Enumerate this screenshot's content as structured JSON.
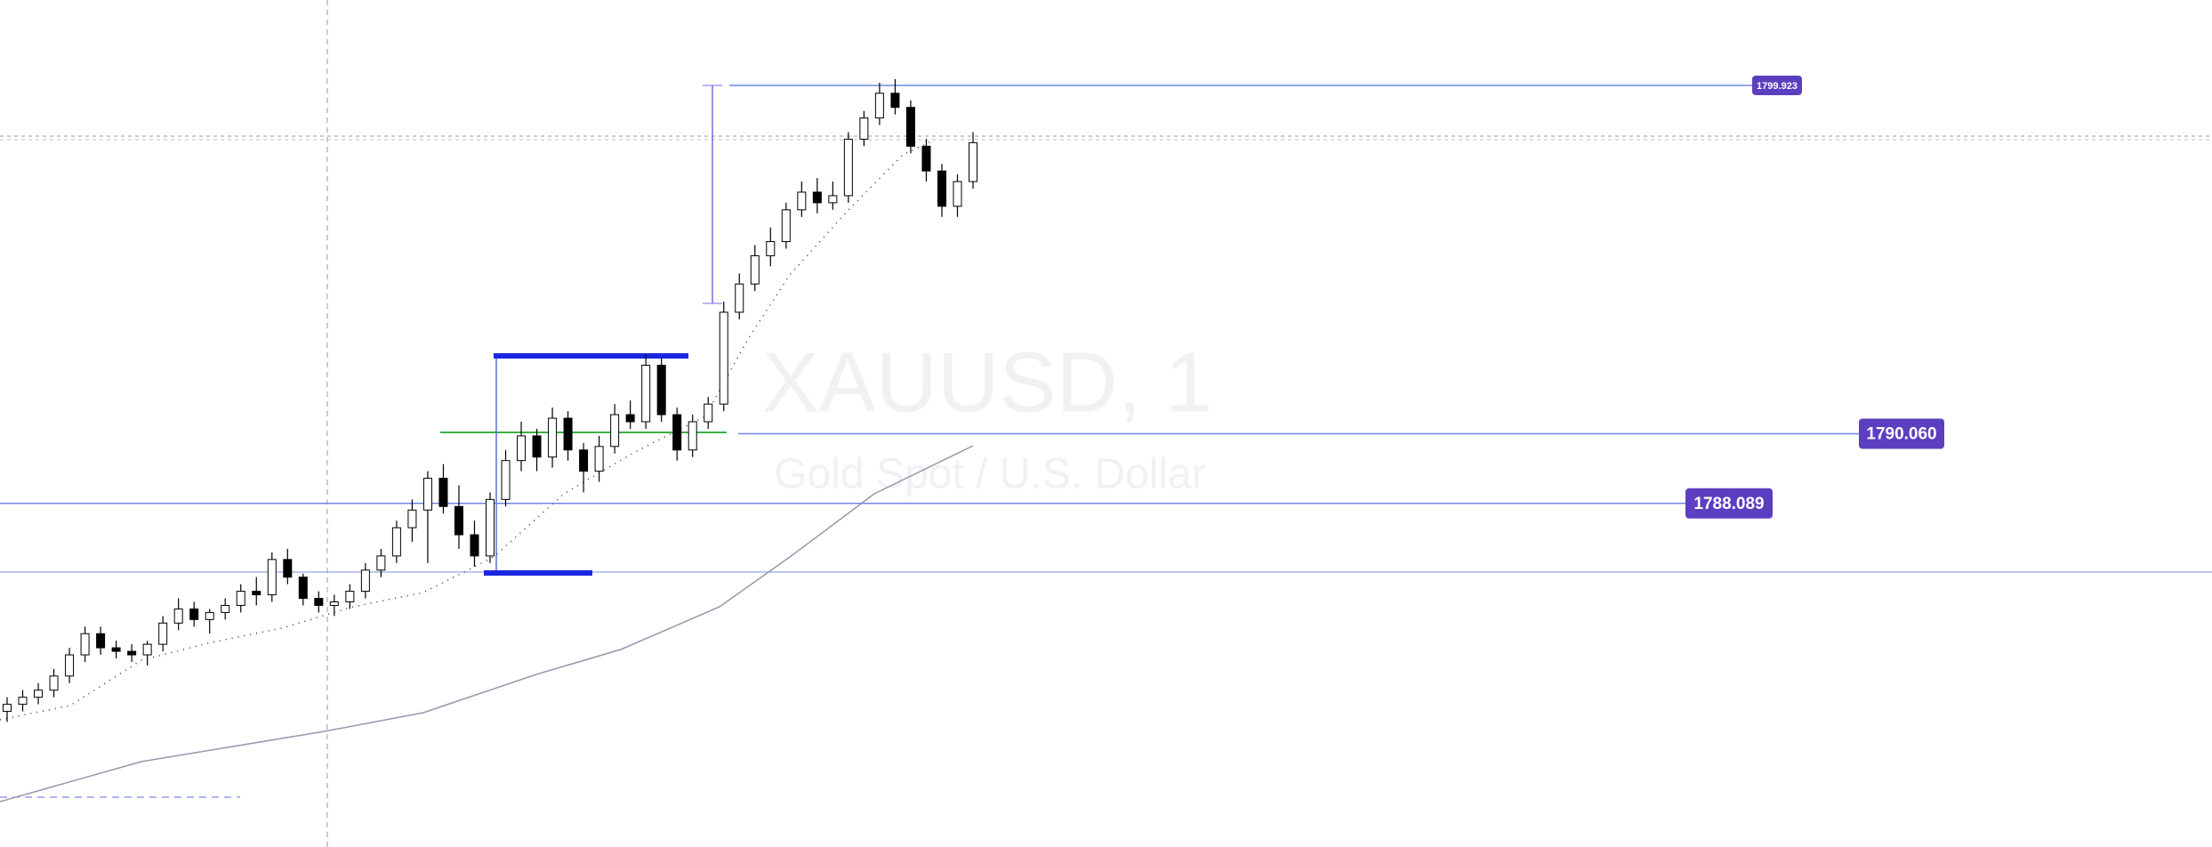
{
  "chart_data": {
    "type": "candlestick",
    "title": "XAUUSD, 1",
    "subtitle": "Gold Spot / U.S. Dollar",
    "ylim": [
      1778.36,
      1802.34
    ],
    "up_color": "#ffffff",
    "down_color": "#000000",
    "border_color": "#000000",
    "open": [
      1782.2,
      1782.4,
      1782.6,
      1782.8,
      1783.2,
      1783.8,
      1784.4,
      1784.0,
      1783.9,
      1783.8,
      1784.1,
      1784.7,
      1785.1,
      1784.8,
      1785.0,
      1785.2,
      1785.6,
      1785.5,
      1786.5,
      1786.0,
      1785.4,
      1785.2,
      1785.3,
      1785.6,
      1786.2,
      1786.6,
      1787.4,
      1787.9,
      1788.8,
      1788.0,
      1787.2,
      1786.6,
      1788.2,
      1789.3,
      1790.0,
      1789.4,
      1790.5,
      1789.6,
      1789.0,
      1789.7,
      1790.6,
      1790.4,
      1792.0,
      1790.6,
      1789.6,
      1790.4,
      1790.9,
      1793.5,
      1794.3,
      1795.1,
      1795.5,
      1796.4,
      1796.9,
      1796.6,
      1796.8,
      1798.4,
      1799.0,
      1799.7,
      1799.3,
      1798.2,
      1797.5,
      1796.5,
      1797.2
    ],
    "high": [
      1782.6,
      1782.8,
      1783.0,
      1783.4,
      1784.0,
      1784.6,
      1784.6,
      1784.2,
      1784.1,
      1784.2,
      1784.9,
      1785.4,
      1785.3,
      1785.1,
      1785.4,
      1785.8,
      1786.0,
      1786.7,
      1786.8,
      1786.1,
      1785.6,
      1785.5,
      1785.8,
      1786.4,
      1786.8,
      1787.6,
      1788.2,
      1789.0,
      1789.2,
      1788.6,
      1787.6,
      1788.4,
      1789.6,
      1790.4,
      1790.2,
      1790.8,
      1790.7,
      1789.8,
      1790.0,
      1790.9,
      1791.0,
      1792.3,
      1792.2,
      1790.8,
      1790.6,
      1791.1,
      1793.8,
      1794.6,
      1795.4,
      1795.9,
      1796.6,
      1797.2,
      1797.3,
      1797.2,
      1798.6,
      1799.2,
      1800.0,
      1800.1,
      1799.5,
      1798.4,
      1797.7,
      1797.4,
      1798.6
    ],
    "low": [
      1781.9,
      1782.2,
      1782.4,
      1782.6,
      1783.0,
      1783.6,
      1783.8,
      1783.7,
      1783.6,
      1783.5,
      1783.9,
      1784.5,
      1784.6,
      1784.4,
      1784.8,
      1785.0,
      1785.2,
      1785.3,
      1785.8,
      1785.2,
      1785.0,
      1784.9,
      1785.1,
      1785.4,
      1786.0,
      1786.4,
      1787.0,
      1786.4,
      1787.8,
      1786.8,
      1786.3,
      1786.4,
      1788.0,
      1789.0,
      1789.0,
      1789.1,
      1789.3,
      1788.4,
      1788.7,
      1789.5,
      1790.2,
      1790.2,
      1790.4,
      1789.3,
      1789.4,
      1790.2,
      1790.7,
      1793.3,
      1794.1,
      1794.8,
      1795.3,
      1796.2,
      1796.3,
      1796.4,
      1796.6,
      1798.2,
      1798.8,
      1799.1,
      1798.0,
      1797.2,
      1796.2,
      1796.2,
      1797.0
    ],
    "close": [
      1782.4,
      1782.6,
      1782.8,
      1783.2,
      1783.8,
      1784.4,
      1784.0,
      1783.9,
      1783.8,
      1784.1,
      1784.7,
      1785.1,
      1784.8,
      1785.0,
      1785.2,
      1785.6,
      1785.5,
      1786.5,
      1786.0,
      1785.4,
      1785.2,
      1785.3,
      1785.6,
      1786.2,
      1786.6,
      1787.4,
      1787.9,
      1788.8,
      1788.0,
      1787.2,
      1786.6,
      1788.2,
      1789.3,
      1790.0,
      1789.4,
      1790.5,
      1789.6,
      1789.0,
      1789.7,
      1790.6,
      1790.4,
      1792.0,
      1790.6,
      1789.6,
      1790.4,
      1790.9,
      1793.5,
      1794.3,
      1795.1,
      1795.5,
      1796.4,
      1796.9,
      1796.6,
      1796.8,
      1798.4,
      1799.0,
      1799.7,
      1799.3,
      1798.2,
      1797.5,
      1796.5,
      1797.2,
      1798.3
    ],
    "levels": [
      {
        "value": 1799.923,
        "label": "1799.923"
      },
      {
        "value": 1790.06,
        "label": "1790.060"
      },
      {
        "value": 1788.089,
        "label": "1788.089"
      }
    ]
  }
}
